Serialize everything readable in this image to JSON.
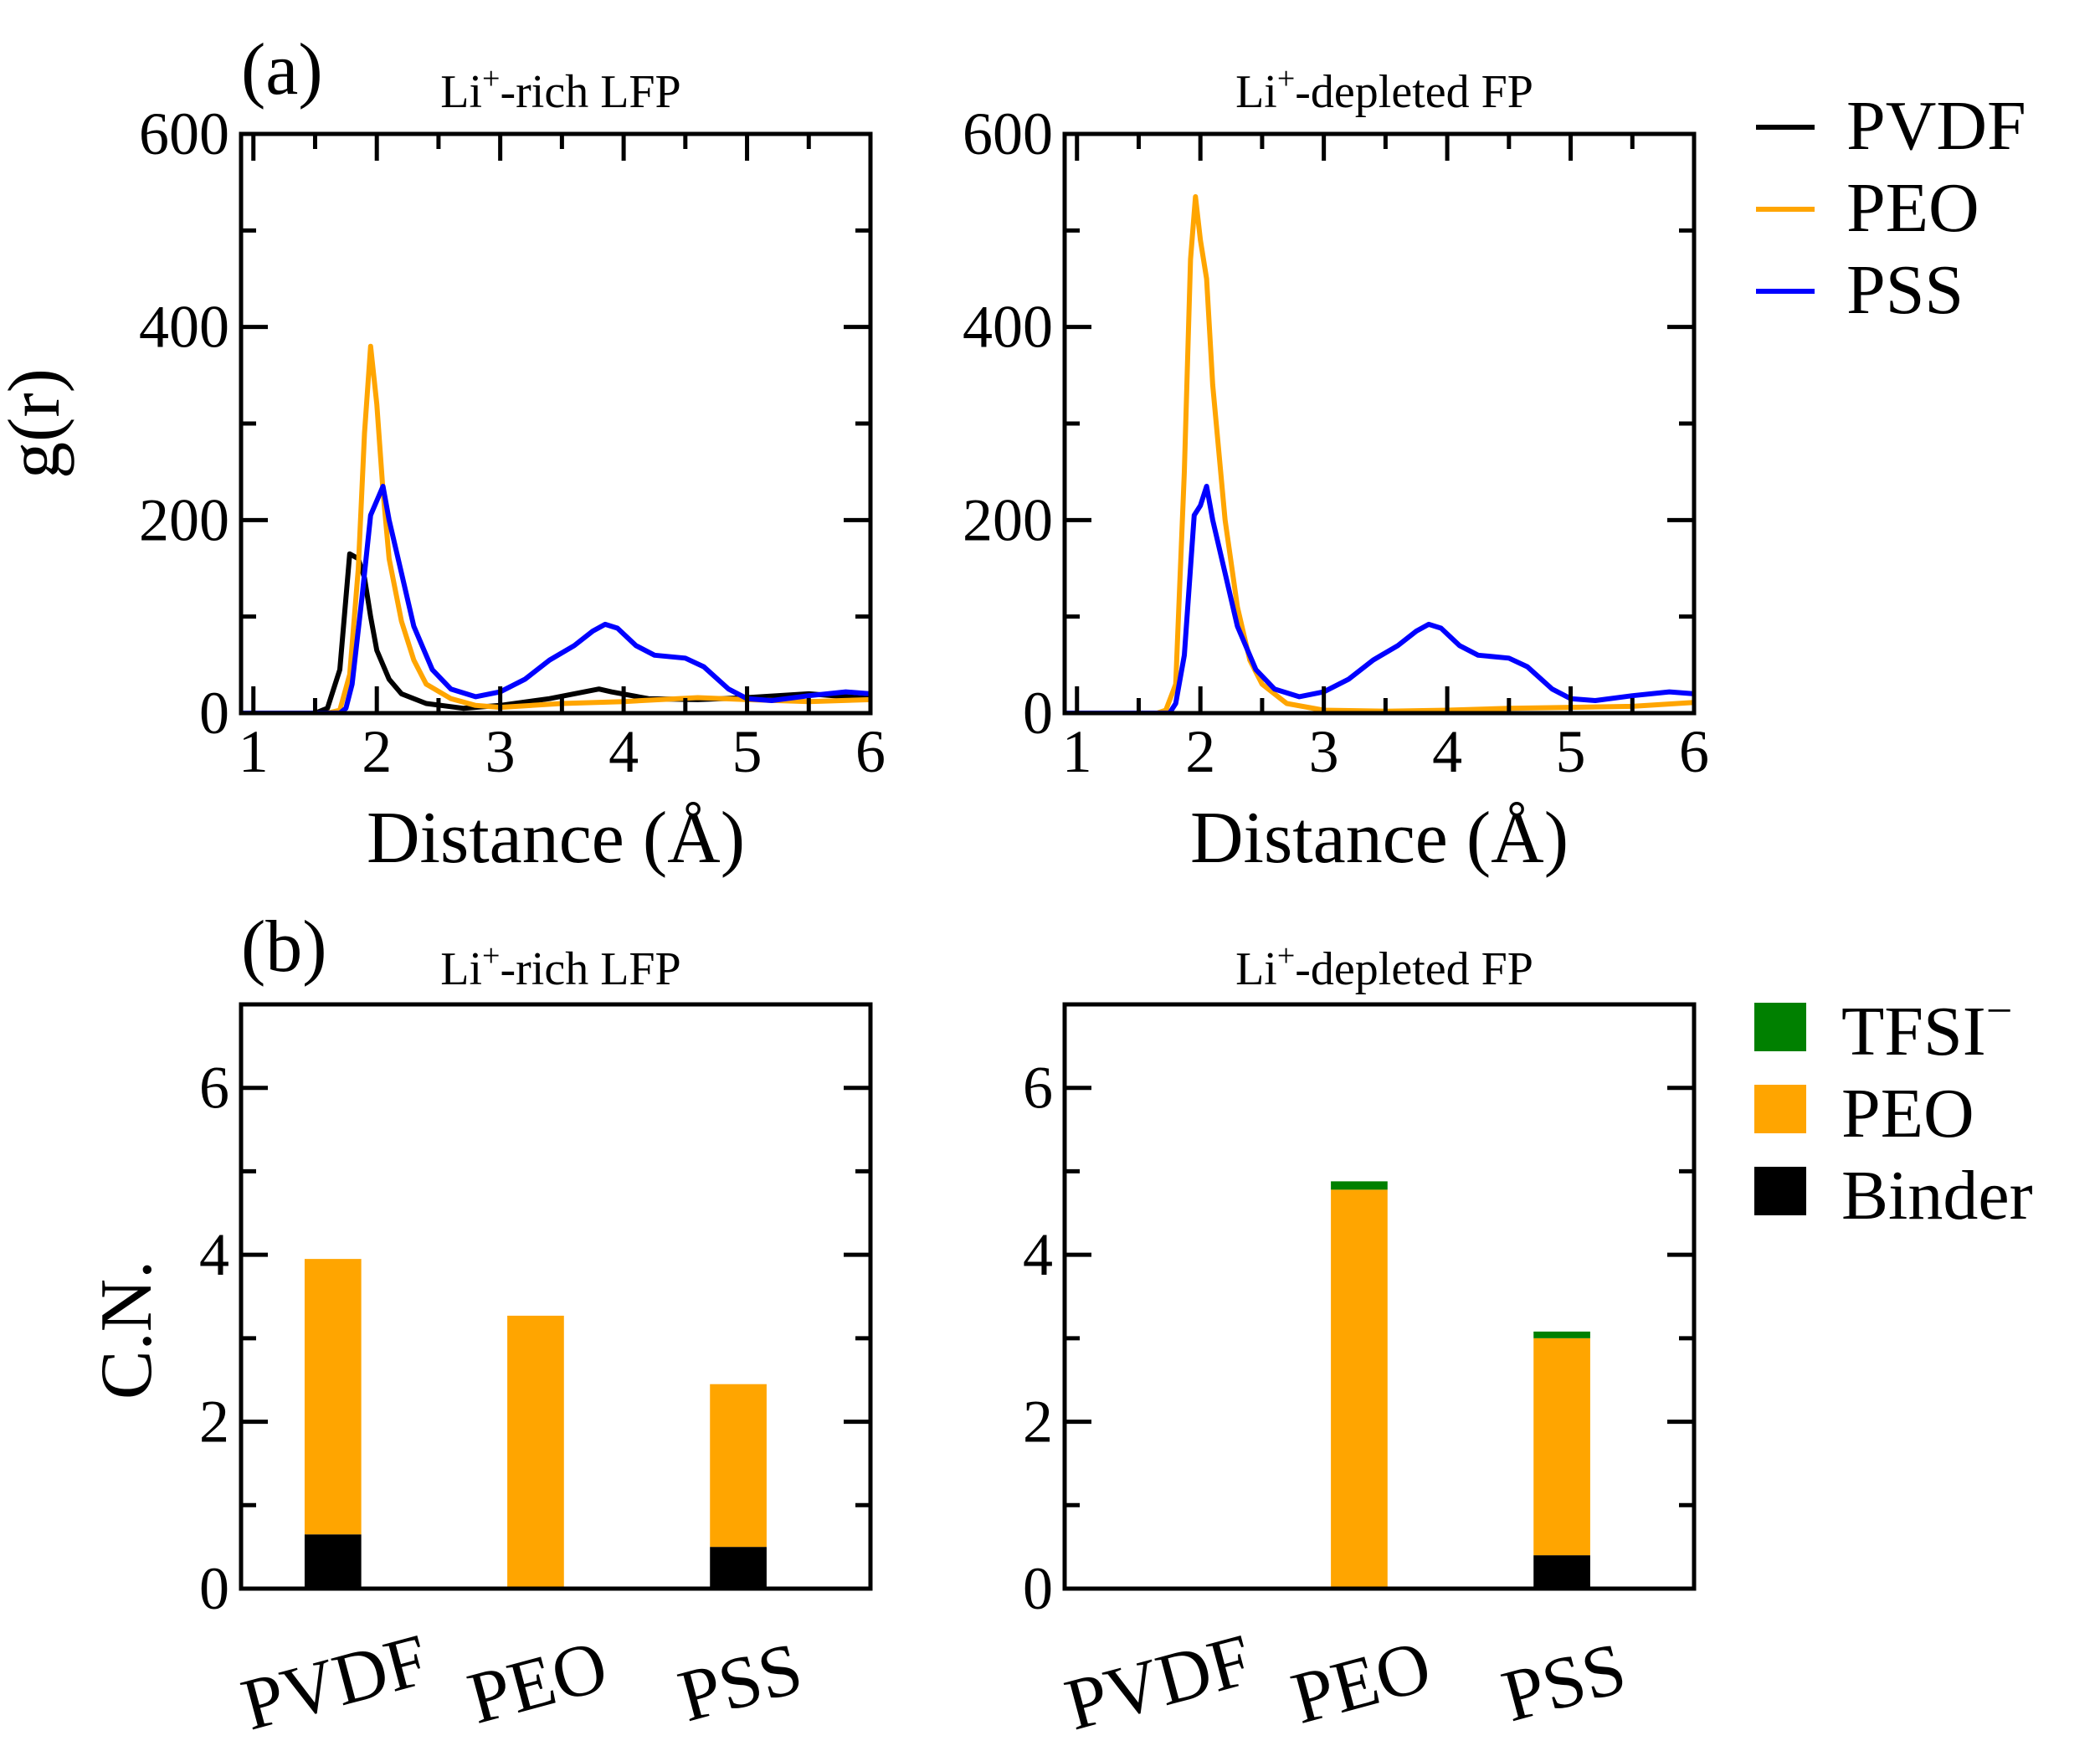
{
  "figure": {
    "panel_a_letter": "(a)",
    "panel_b_letter": "(b)"
  },
  "colors": {
    "PVDF": "#000000",
    "PEO": "#ffa500",
    "PSS": "#0000ff",
    "TFSI": "#008000",
    "Binder": "#000000"
  },
  "line_legend": [
    {
      "key": "PVDF",
      "label": "PVDF"
    },
    {
      "key": "PEO",
      "label": "PEO"
    },
    {
      "key": "PSS",
      "label": "PSS"
    }
  ],
  "bar_legend": [
    {
      "key": "TFSI",
      "label": "TFSI",
      "sup": "−"
    },
    {
      "key": "PEO",
      "label": "PEO",
      "sup": ""
    },
    {
      "key": "Binder",
      "label": "Binder",
      "sup": ""
    }
  ],
  "chart_data": [
    {
      "id": "a-left",
      "type": "line",
      "title": "Li",
      "title_sup": "+",
      "title_rest": "-rich LFP",
      "xlabel": "Distance (Å)",
      "ylabel": "g(r)",
      "xlim": [
        0.9,
        6
      ],
      "ylim": [
        0,
        600
      ],
      "xticks": [
        1,
        2,
        3,
        4,
        5,
        6
      ],
      "yticks": [
        0,
        200,
        400,
        600
      ],
      "series": [
        {
          "name": "PVDF",
          "x": [
            0.9,
            1.5,
            1.6,
            1.7,
            1.78,
            1.85,
            1.9,
            1.95,
            2.0,
            2.1,
            2.2,
            2.4,
            2.7,
            3.0,
            3.4,
            3.8,
            3.9,
            4.2,
            4.6,
            5.0,
            5.5,
            6.0
          ],
          "y": [
            0,
            0,
            5,
            45,
            165,
            160,
            140,
            100,
            65,
            35,
            20,
            10,
            5,
            8,
            15,
            25,
            22,
            15,
            14,
            16,
            20,
            15
          ]
        },
        {
          "name": "PEO",
          "x": [
            0.9,
            1.6,
            1.7,
            1.78,
            1.85,
            1.9,
            1.95,
            2.0,
            2.05,
            2.1,
            2.2,
            2.3,
            2.4,
            2.6,
            2.8,
            3.0,
            3.5,
            4.0,
            4.6,
            5.0,
            5.5,
            6.0
          ],
          "y": [
            0,
            0,
            3,
            40,
            150,
            290,
            380,
            320,
            230,
            160,
            95,
            55,
            30,
            15,
            8,
            6,
            10,
            12,
            16,
            14,
            12,
            14
          ]
        },
        {
          "name": "PSS",
          "x": [
            0.9,
            1.7,
            1.75,
            1.8,
            1.88,
            1.95,
            2.05,
            2.1,
            2.2,
            2.3,
            2.45,
            2.6,
            2.8,
            3.0,
            3.2,
            3.4,
            3.6,
            3.75,
            3.85,
            3.95,
            4.1,
            4.25,
            4.5,
            4.65,
            4.85,
            5.0,
            5.2,
            5.5,
            5.8,
            6.0
          ],
          "y": [
            0,
            0,
            5,
            30,
            120,
            205,
            235,
            200,
            145,
            90,
            45,
            25,
            17,
            22,
            35,
            55,
            70,
            85,
            92,
            88,
            70,
            60,
            57,
            48,
            25,
            15,
            13,
            18,
            22,
            20
          ]
        }
      ]
    },
    {
      "id": "a-right",
      "type": "line",
      "title": "Li",
      "title_sup": "+",
      "title_rest": "-depleted FP",
      "xlabel": "Distance (Å)",
      "ylabel": "",
      "xlim": [
        0.9,
        6
      ],
      "ylim": [
        0,
        600
      ],
      "xticks": [
        1,
        2,
        3,
        4,
        5,
        6
      ],
      "yticks": [
        0,
        200,
        400,
        600
      ],
      "series": [
        {
          "name": "PEO",
          "x": [
            0.9,
            1.65,
            1.72,
            1.8,
            1.87,
            1.92,
            1.96,
            2.0,
            2.05,
            2.1,
            2.2,
            2.3,
            2.4,
            2.5,
            2.7,
            3.0,
            3.5,
            4.0,
            4.5,
            5.0,
            5.5,
            6.0
          ],
          "y": [
            0,
            0,
            3,
            30,
            250,
            470,
            535,
            490,
            450,
            340,
            200,
            110,
            55,
            30,
            10,
            3,
            2,
            3,
            5,
            6,
            7,
            11
          ]
        },
        {
          "name": "PSS",
          "x": [
            0.9,
            1.75,
            1.8,
            1.87,
            1.95,
            2.0,
            2.05,
            2.1,
            2.2,
            2.3,
            2.45,
            2.6,
            2.8,
            3.0,
            3.2,
            3.4,
            3.6,
            3.75,
            3.85,
            3.95,
            4.1,
            4.25,
            4.5,
            4.65,
            4.85,
            5.0,
            5.2,
            5.5,
            5.8,
            6.0
          ],
          "y": [
            0,
            0,
            10,
            60,
            205,
            215,
            235,
            200,
            145,
            90,
            45,
            25,
            17,
            22,
            35,
            55,
            70,
            85,
            92,
            88,
            70,
            60,
            57,
            48,
            25,
            15,
            13,
            18,
            22,
            20
          ]
        }
      ]
    },
    {
      "id": "b-left",
      "type": "bar",
      "title": "Li",
      "title_sup": "+",
      "title_rest": "-rich LFP",
      "ylabel": "C.N.",
      "ylim": [
        0,
        7
      ],
      "yticks": [
        0,
        2,
        4,
        6
      ],
      "categories": [
        "PVDF",
        "PEO",
        "PSS"
      ],
      "stacks": [
        {
          "name": "Binder",
          "values": [
            0.65,
            0.0,
            0.5
          ]
        },
        {
          "name": "PEO",
          "values": [
            3.3,
            3.27,
            1.95
          ]
        },
        {
          "name": "TFSI",
          "values": [
            0.0,
            0.0,
            0.0
          ]
        }
      ]
    },
    {
      "id": "b-right",
      "type": "bar",
      "title": "Li",
      "title_sup": "+",
      "title_rest": "-depleted FP",
      "ylabel": "",
      "ylim": [
        0,
        7
      ],
      "yticks": [
        0,
        2,
        4,
        6
      ],
      "categories": [
        "PVDF",
        "PEO",
        "PSS"
      ],
      "stacks": [
        {
          "name": "Binder",
          "values": [
            0.0,
            0.0,
            0.4
          ]
        },
        {
          "name": "PEO",
          "values": [
            0.0,
            4.78,
            2.6
          ]
        },
        {
          "name": "TFSI",
          "values": [
            0.0,
            0.1,
            0.08
          ]
        }
      ]
    }
  ]
}
